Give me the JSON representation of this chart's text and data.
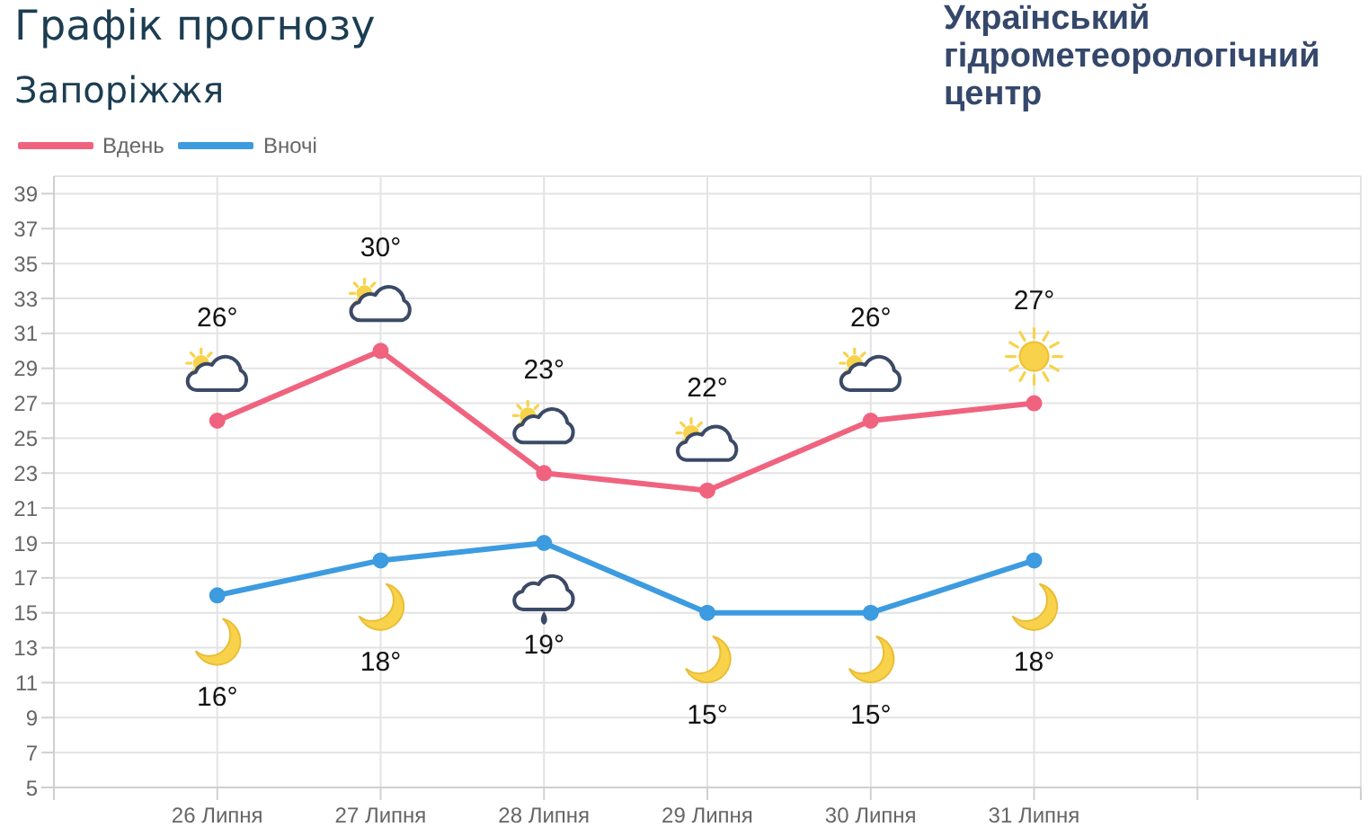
{
  "chart_data": {
    "type": "line",
    "title": "Графік прогнозу",
    "subtitle": "Запоріжжя",
    "annotations": [
      "Український гідрометеорологічний центр"
    ],
    "categories": [
      null,
      "26 Липня",
      "27 Липня",
      "28 Липня",
      "29 Липня",
      "30 Липня",
      "31 Липня",
      null,
      null
    ],
    "series": [
      {
        "name": "Вдень",
        "color": "#f0637f",
        "values": [
          null,
          26,
          30,
          23,
          22,
          26,
          27,
          null,
          null
        ],
        "value_labels": [
          null,
          "26°",
          "30°",
          "23°",
          "22°",
          "26°",
          "27°",
          null,
          null
        ]
      },
      {
        "name": "Вночі",
        "color": "#3d9be0",
        "values": [
          null,
          16,
          18,
          19,
          15,
          15,
          18,
          null,
          null
        ],
        "value_labels": [
          null,
          "16°",
          "18°",
          "19°",
          "15°",
          "15°",
          "18°",
          null,
          null
        ]
      }
    ],
    "ylim": [
      5,
      40
    ],
    "yticks": [
      5,
      7,
      9,
      11,
      13,
      15,
      17,
      19,
      21,
      23,
      25,
      27,
      29,
      31,
      33,
      35,
      37,
      39
    ],
    "grid": true,
    "legend": "top left",
    "marker": "circle",
    "line_style": "solid"
  }
}
